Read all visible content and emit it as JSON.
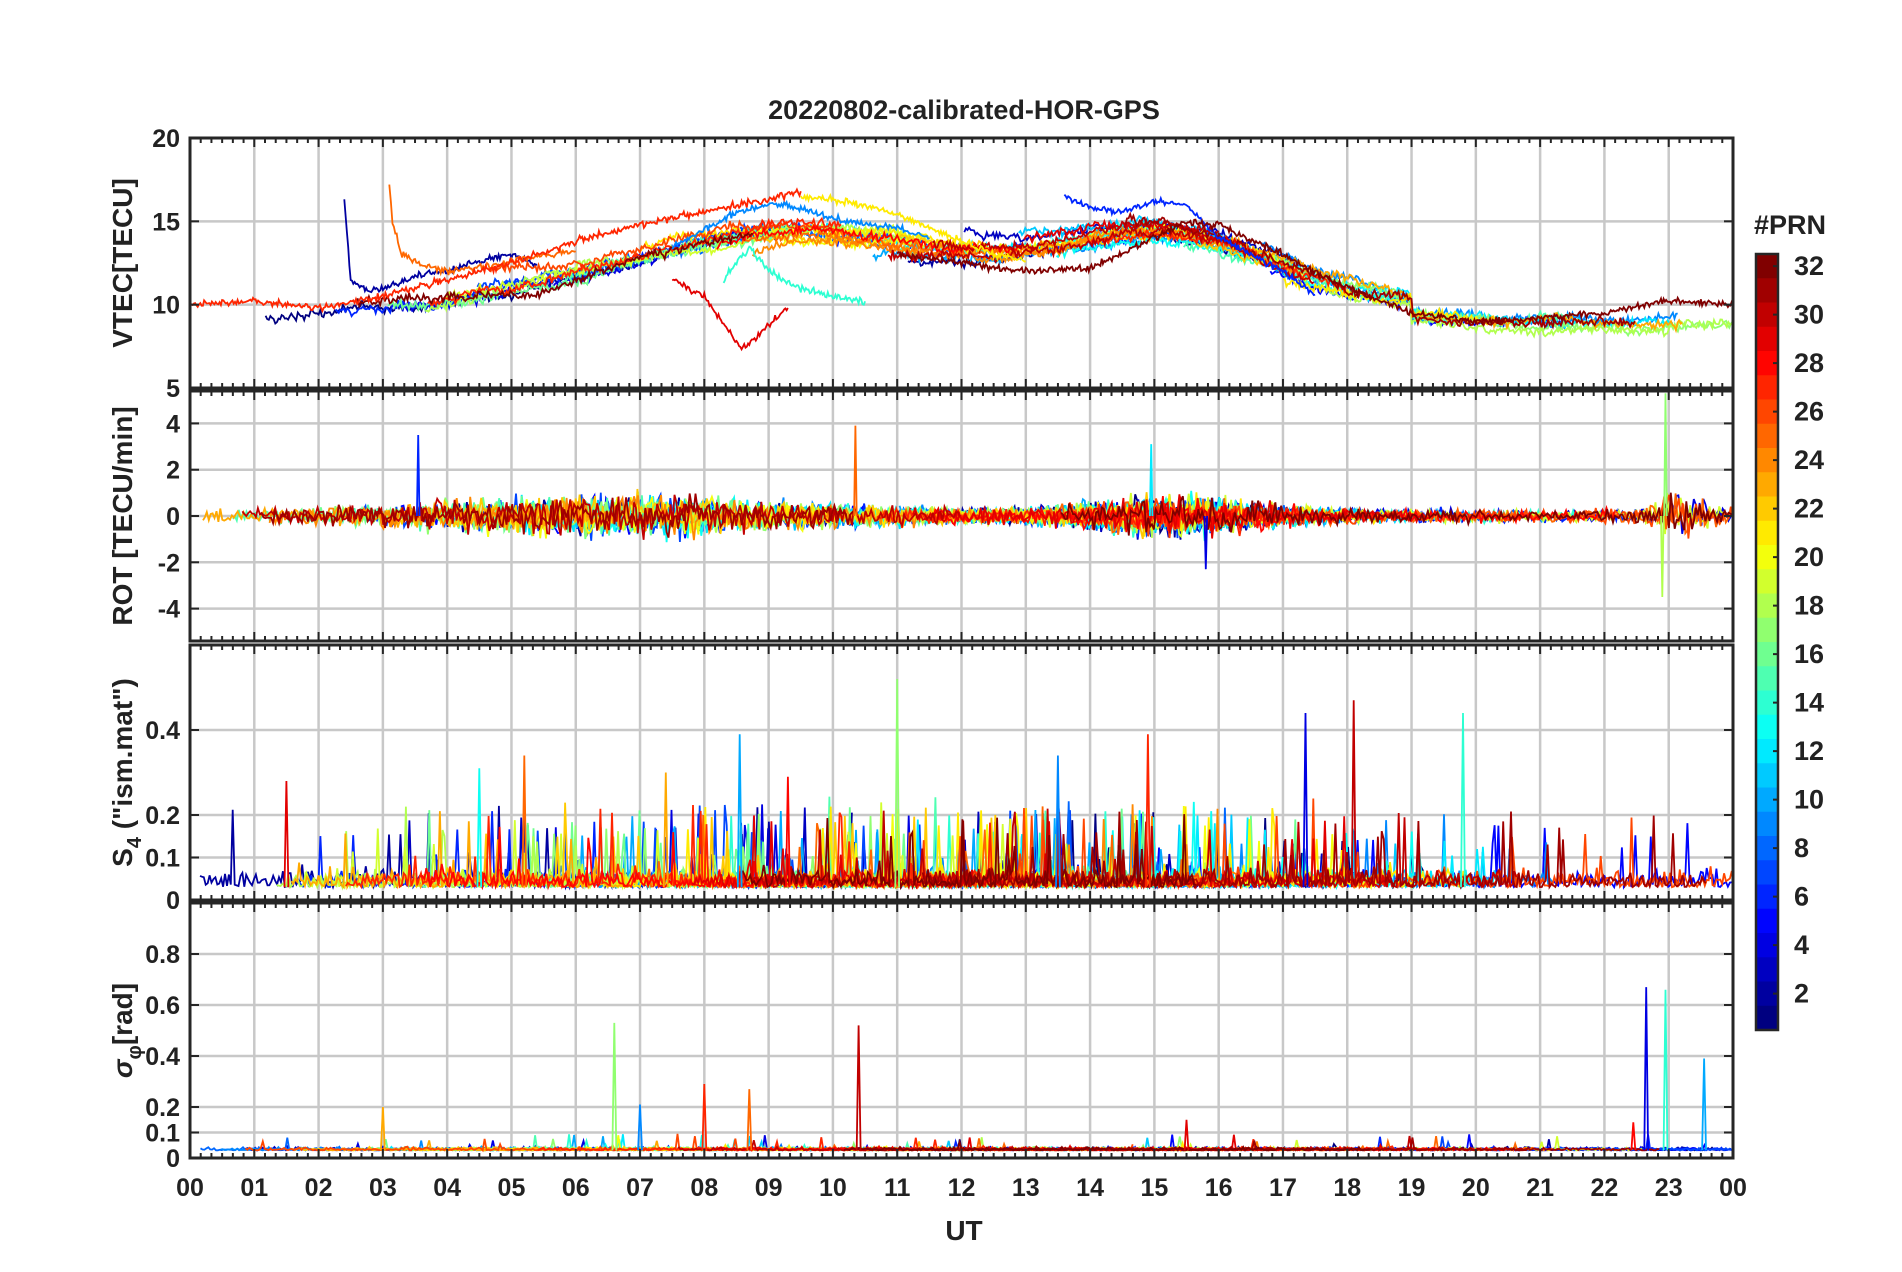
{
  "chart_data": [
    {
      "type": "line",
      "title": "20220802-calibrated-HOR-GPS",
      "ylabel": "VTEC[TECU]",
      "ylim": [
        5,
        20
      ],
      "yticks": [
        5,
        10,
        15,
        20
      ],
      "xlim": [
        0,
        24
      ],
      "series_count": 32,
      "sample_series": [
        {
          "prn": 2,
          "x": [
            2.4,
            2.5,
            2.8,
            3.2,
            3.6,
            4.0,
            4.5,
            5.0,
            5.4
          ],
          "y": [
            16.2,
            11.5,
            10.8,
            11.2,
            11.8,
            12.0,
            12.6,
            13.0,
            12.4
          ]
        },
        {
          "prn": 6,
          "x": [
            13.6,
            14.0,
            14.5,
            15.0,
            15.5,
            16.0,
            16.5,
            17.0,
            17.5
          ],
          "y": [
            16.5,
            15.8,
            15.6,
            16.2,
            16.0,
            14.0,
            13.0,
            12.0,
            10.6
          ]
        },
        {
          "prn": 9,
          "x": [
            7.5,
            8.0,
            8.5,
            9.0,
            9.5,
            10.0,
            10.5,
            11.0,
            11.5
          ],
          "y": [
            13.5,
            14.5,
            15.5,
            16.0,
            15.8,
            15.2,
            14.8,
            14.6,
            14.0
          ]
        },
        {
          "prn": 14,
          "x": [
            8.3,
            8.7,
            9.0,
            9.5,
            10.0,
            10.5
          ],
          "y": [
            11.5,
            13.5,
            12.0,
            11.0,
            10.5,
            10.2
          ]
        },
        {
          "prn": 21,
          "x": [
            9.5,
            10.0,
            10.5,
            11.0,
            11.5,
            12.0,
            12.5,
            13.0
          ],
          "y": [
            16.5,
            16.3,
            16.0,
            15.4,
            14.6,
            13.8,
            13.0,
            12.6
          ]
        },
        {
          "prn": 25,
          "x": [
            3.1,
            3.15,
            3.3,
            3.6,
            4.0,
            4.5,
            5.0,
            5.5,
            6.0
          ],
          "y": [
            17.3,
            15.0,
            13.0,
            12.4,
            12.0,
            12.2,
            12.6,
            13.0,
            13.2
          ]
        },
        {
          "prn": 27,
          "x": [
            0.0,
            1.0,
            2.0,
            3.0,
            4.0,
            5.0,
            6.0,
            7.0,
            8.0,
            9.0,
            9.5
          ],
          "y": [
            10.0,
            10.2,
            9.8,
            10.5,
            11.5,
            12.5,
            13.8,
            14.8,
            15.6,
            16.3,
            16.8
          ]
        },
        {
          "prn": 29,
          "x": [
            7.5,
            8.0,
            8.3,
            8.6,
            9.0,
            9.3
          ],
          "y": [
            11.5,
            10.5,
            8.8,
            7.3,
            8.8,
            9.8
          ]
        },
        {
          "prn": 32,
          "x": [
            11.0,
            12.0,
            13.0,
            14.0,
            15.0,
            15.5,
            16.0,
            17.0,
            18.0,
            19.0,
            20.0,
            21.0,
            22.0,
            23.0,
            24.0
          ],
          "y": [
            13.0,
            12.5,
            12.0,
            12.2,
            14.0,
            15.0,
            14.8,
            13.0,
            11.0,
            9.5,
            9.0,
            9.2,
            9.5,
            10.2,
            10.0
          ]
        }
      ]
    },
    {
      "type": "line",
      "ylabel": "ROT [TECU/min]",
      "ylim": [
        -5.4,
        5.4
      ],
      "yticks": [
        -4,
        -2,
        0,
        2,
        4
      ],
      "xlim": [
        0,
        24
      ],
      "series_count": 32,
      "notable_peaks": [
        {
          "x": 3.55,
          "y": 3.5
        },
        {
          "x": 10.35,
          "y": 3.9
        },
        {
          "x": 14.95,
          "y": 3.1
        },
        {
          "x": 22.95,
          "y": 5.3
        },
        {
          "x": 22.9,
          "y": -3.5
        },
        {
          "x": 15.8,
          "y": -2.3
        }
      ]
    },
    {
      "type": "line",
      "ylabel_main": "S",
      "ylabel_sub": "4",
      "ylabel_rest": " (\"ism.mat\")",
      "ylim": [
        0,
        0.6
      ],
      "yticks": [
        0,
        0.1,
        0.2,
        0.4
      ],
      "xlim": [
        0,
        24
      ],
      "series_count": 32,
      "notable_peaks": [
        {
          "x": 11.0,
          "y": 0.52
        },
        {
          "x": 18.1,
          "y": 0.47
        },
        {
          "x": 17.35,
          "y": 0.44
        },
        {
          "x": 19.8,
          "y": 0.44
        },
        {
          "x": 8.55,
          "y": 0.39
        },
        {
          "x": 14.9,
          "y": 0.39
        },
        {
          "x": 5.2,
          "y": 0.34
        },
        {
          "x": 13.5,
          "y": 0.34
        },
        {
          "x": 7.4,
          "y": 0.3
        },
        {
          "x": 9.3,
          "y": 0.29
        },
        {
          "x": 1.5,
          "y": 0.28
        },
        {
          "x": 4.5,
          "y": 0.31
        }
      ]
    },
    {
      "type": "line",
      "ylabel_main": "σ",
      "ylabel_sub": "φ",
      "ylabel_rest": "[rad]",
      "ylim": [
        0,
        1.0
      ],
      "yticks": [
        0,
        0.1,
        0.2,
        0.4,
        0.6,
        0.8
      ],
      "xlim": [
        0,
        24
      ],
      "series_count": 32,
      "notable_peaks": [
        {
          "x": 6.6,
          "y": 0.53
        },
        {
          "x": 10.4,
          "y": 0.52
        },
        {
          "x": 22.65,
          "y": 0.67
        },
        {
          "x": 22.95,
          "y": 0.66
        },
        {
          "x": 23.55,
          "y": 0.39
        },
        {
          "x": 8.0,
          "y": 0.29
        },
        {
          "x": 8.7,
          "y": 0.27
        },
        {
          "x": 7.0,
          "y": 0.21
        },
        {
          "x": 3.0,
          "y": 0.2
        },
        {
          "x": 22.45,
          "y": 0.14
        },
        {
          "x": 15.5,
          "y": 0.15
        }
      ]
    }
  ],
  "shared_x": {
    "xlabel": "UT",
    "xlim": [
      0,
      24
    ],
    "tick_labels": [
      "00",
      "01",
      "02",
      "03",
      "04",
      "05",
      "06",
      "07",
      "08",
      "09",
      "10",
      "11",
      "12",
      "13",
      "14",
      "15",
      "16",
      "17",
      "18",
      "19",
      "20",
      "21",
      "22",
      "23",
      "00"
    ]
  },
  "colorbar": {
    "title": "#PRN",
    "range": [
      1,
      32
    ],
    "colormap": "jet",
    "tick_labels": [
      "32",
      "30",
      "28",
      "26",
      "24",
      "22",
      "20",
      "18",
      "16",
      "14",
      "12",
      "10",
      "8",
      "6",
      "4",
      "2"
    ]
  },
  "colors": {
    "grid": "#c8c8c8",
    "axes": "#262626",
    "text": "#222222"
  }
}
